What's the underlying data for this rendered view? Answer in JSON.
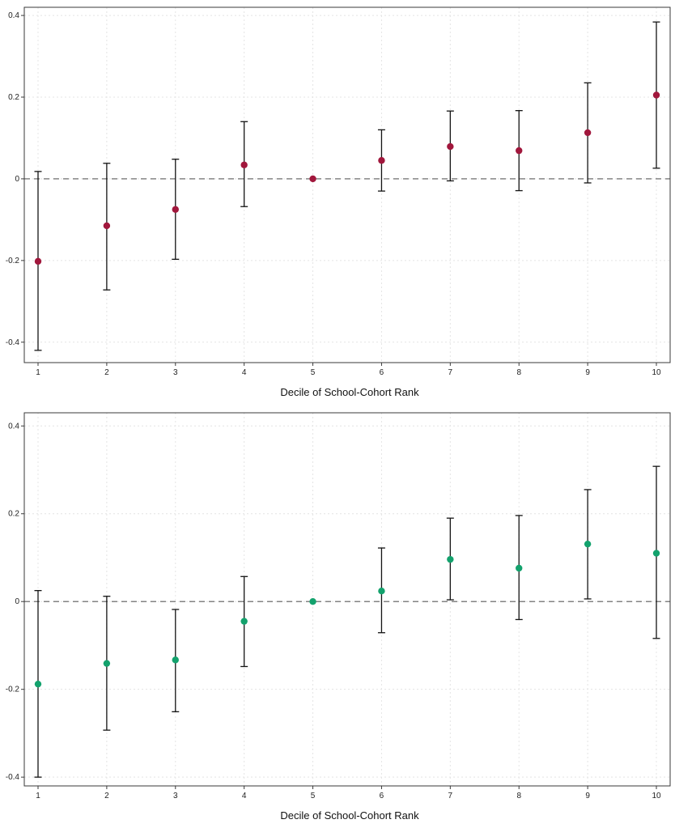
{
  "figure": {
    "background": "#ffffff",
    "grid_color": "#e4e4e4",
    "axis_color": "#3a3a3a",
    "zero_line_color": "#5c5c5c"
  },
  "chart_data": [
    {
      "type": "scatter",
      "subtype": "coefficient-plot-with-error-bars",
      "title": "",
      "xlabel": "Decile of School-Cohort Rank",
      "ylabel": "",
      "categories": [
        1,
        2,
        3,
        4,
        5,
        6,
        7,
        8,
        9,
        10
      ],
      "series": [
        {
          "name": "coefficient",
          "values": [
            -0.202,
            -0.115,
            -0.075,
            0.034,
            0.0,
            0.045,
            0.079,
            0.069,
            0.113,
            0.205
          ],
          "ci_low": [
            -0.42,
            -0.272,
            -0.197,
            -0.068,
            0.0,
            -0.03,
            -0.005,
            -0.029,
            -0.01,
            0.026
          ],
          "ci_high": [
            0.018,
            0.038,
            0.048,
            0.14,
            0.0,
            0.12,
            0.166,
            0.167,
            0.235,
            0.384
          ]
        }
      ],
      "marker_color": "#A1173C",
      "errorbar_color": "#141414",
      "zero_line": true,
      "grid": true,
      "ylim": [
        -0.45,
        0.42
      ],
      "yticks": [
        -0.4,
        -0.2,
        0,
        0.2,
        0.4
      ],
      "ytick_labels": [
        "-0.4",
        "-0.2",
        "0",
        "0.2",
        "0.4"
      ],
      "xtick_labels": [
        "1",
        "2",
        "3",
        "4",
        "5",
        "6",
        "7",
        "8",
        "9",
        "10"
      ],
      "legend": "none"
    },
    {
      "type": "scatter",
      "subtype": "coefficient-plot-with-error-bars",
      "title": "",
      "xlabel": "Decile of School-Cohort Rank",
      "ylabel": "",
      "categories": [
        1,
        2,
        3,
        4,
        5,
        6,
        7,
        8,
        9,
        10
      ],
      "series": [
        {
          "name": "coefficient",
          "values": [
            -0.188,
            -0.141,
            -0.133,
            -0.045,
            0.0,
            0.024,
            0.096,
            0.076,
            0.131,
            0.11
          ],
          "ci_low": [
            -0.4,
            -0.293,
            -0.251,
            -0.148,
            0.0,
            -0.071,
            0.004,
            -0.041,
            0.006,
            -0.084
          ],
          "ci_high": [
            0.025,
            0.012,
            -0.018,
            0.057,
            0.0,
            0.122,
            0.19,
            0.196,
            0.255,
            0.308
          ]
        }
      ],
      "marker_color": "#13A26D",
      "errorbar_color": "#141414",
      "zero_line": true,
      "grid": true,
      "ylim": [
        -0.42,
        0.43
      ],
      "yticks": [
        -0.4,
        -0.2,
        0,
        0.2,
        0.4
      ],
      "ytick_labels": [
        "-0.4",
        "-0.2",
        "0",
        "0.2",
        "0.4"
      ],
      "xtick_labels": [
        "1",
        "2",
        "3",
        "4",
        "5",
        "6",
        "7",
        "8",
        "9",
        "10"
      ],
      "legend": "none"
    }
  ]
}
